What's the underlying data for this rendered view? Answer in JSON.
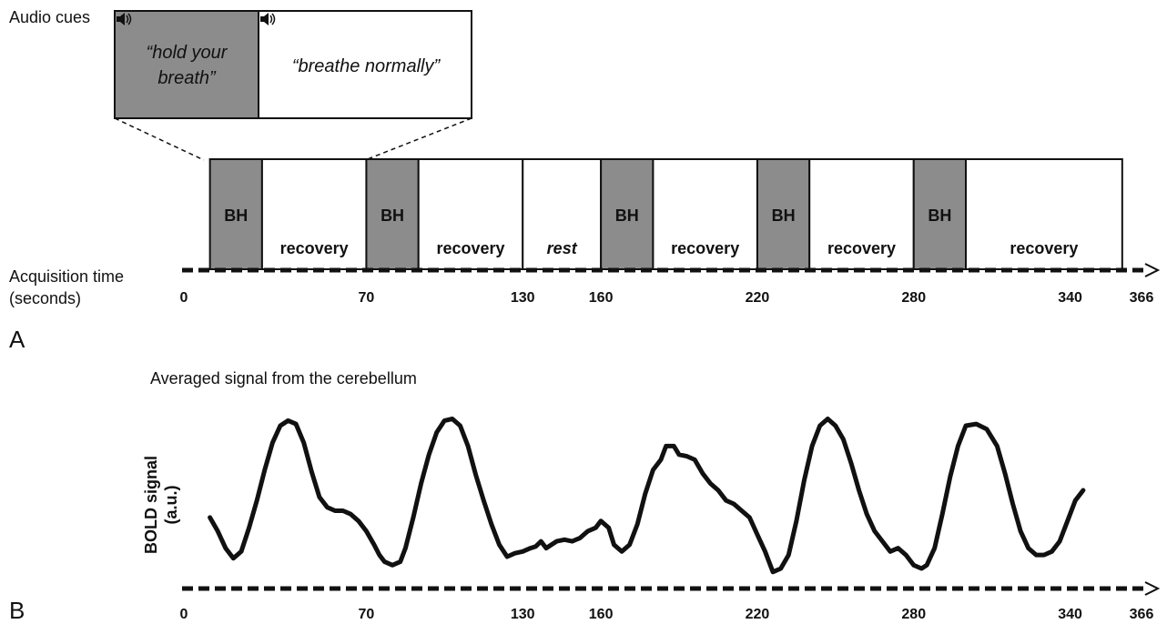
{
  "panel_a": {
    "letter": "A",
    "audio_cues_label": "Audio cues",
    "cue_hold": [
      "“hold your",
      "breath”"
    ],
    "cue_breathe": "“breathe normally”",
    "acq_label": [
      "Acquisition time",
      "(seconds)"
    ],
    "ticks": [
      0,
      70,
      130,
      160,
      220,
      280,
      340,
      366
    ],
    "axis_max": 366,
    "blocks": [
      {
        "start": 10,
        "end": 30,
        "label": "BH",
        "type": "bh"
      },
      {
        "start": 30,
        "end": 70,
        "label": "recovery",
        "type": "recovery"
      },
      {
        "start": 70,
        "end": 90,
        "label": "BH",
        "type": "bh"
      },
      {
        "start": 90,
        "end": 130,
        "label": "recovery",
        "type": "recovery"
      },
      {
        "start": 130,
        "end": 160,
        "label": "rest",
        "type": "rest"
      },
      {
        "start": 160,
        "end": 180,
        "label": "BH",
        "type": "bh"
      },
      {
        "start": 180,
        "end": 220,
        "label": "recovery",
        "type": "recovery"
      },
      {
        "start": 220,
        "end": 240,
        "label": "BH",
        "type": "bh"
      },
      {
        "start": 240,
        "end": 280,
        "label": "recovery",
        "type": "recovery"
      },
      {
        "start": 280,
        "end": 300,
        "label": "BH",
        "type": "bh"
      },
      {
        "start": 300,
        "end": 360,
        "label": "recovery",
        "type": "recovery"
      }
    ],
    "colors": {
      "bh": "#8c8c8c",
      "recovery": "#ffffff",
      "line": "#111111"
    }
  },
  "panel_b": {
    "letter": "B",
    "title": "Averaged signal from the cerebellum",
    "ylabel": [
      "BOLD signal",
      "(a.u.)"
    ]
  },
  "chart_data": {
    "type": "line",
    "title": "Averaged signal from the cerebellum",
    "xlabel": "",
    "ylabel": "BOLD signal (a.u.)",
    "xlim": [
      0,
      366
    ],
    "ylim": [
      0,
      1
    ],
    "x_ticks": [
      0,
      70,
      130,
      160,
      220,
      280,
      340,
      366
    ],
    "series": [
      {
        "values": [
          [
            10,
            0.38
          ],
          [
            13,
            0.3
          ],
          [
            16,
            0.2
          ],
          [
            19,
            0.14
          ],
          [
            22,
            0.18
          ],
          [
            25,
            0.32
          ],
          [
            28,
            0.48
          ],
          [
            31,
            0.66
          ],
          [
            34,
            0.82
          ],
          [
            37,
            0.92
          ],
          [
            40,
            0.95
          ],
          [
            43,
            0.93
          ],
          [
            46,
            0.82
          ],
          [
            49,
            0.65
          ],
          [
            52,
            0.5
          ],
          [
            55,
            0.44
          ],
          [
            58,
            0.42
          ],
          [
            61,
            0.42
          ],
          [
            64,
            0.4
          ],
          [
            67,
            0.36
          ],
          [
            70,
            0.3
          ],
          [
            73,
            0.22
          ],
          [
            75,
            0.16
          ],
          [
            77,
            0.12
          ],
          [
            80,
            0.1
          ],
          [
            83,
            0.12
          ],
          [
            85,
            0.2
          ],
          [
            88,
            0.38
          ],
          [
            91,
            0.58
          ],
          [
            94,
            0.75
          ],
          [
            97,
            0.88
          ],
          [
            100,
            0.95
          ],
          [
            103,
            0.96
          ],
          [
            106,
            0.92
          ],
          [
            109,
            0.8
          ],
          [
            112,
            0.63
          ],
          [
            115,
            0.48
          ],
          [
            118,
            0.34
          ],
          [
            121,
            0.22
          ],
          [
            124,
            0.15
          ],
          [
            127,
            0.17
          ],
          [
            130,
            0.18
          ],
          [
            133,
            0.2
          ],
          [
            135,
            0.21
          ],
          [
            137,
            0.24
          ],
          [
            139,
            0.2
          ],
          [
            141,
            0.22
          ],
          [
            143,
            0.24
          ],
          [
            146,
            0.25
          ],
          [
            149,
            0.24
          ],
          [
            152,
            0.26
          ],
          [
            155,
            0.3
          ],
          [
            158,
            0.32
          ],
          [
            160,
            0.36
          ],
          [
            163,
            0.32
          ],
          [
            165,
            0.22
          ],
          [
            168,
            0.18
          ],
          [
            171,
            0.22
          ],
          [
            174,
            0.34
          ],
          [
            177,
            0.52
          ],
          [
            180,
            0.66
          ],
          [
            183,
            0.72
          ],
          [
            185,
            0.8
          ],
          [
            188,
            0.8
          ],
          [
            190,
            0.75
          ],
          [
            193,
            0.74
          ],
          [
            196,
            0.72
          ],
          [
            199,
            0.64
          ],
          [
            202,
            0.58
          ],
          [
            205,
            0.54
          ],
          [
            208,
            0.48
          ],
          [
            211,
            0.46
          ],
          [
            214,
            0.42
          ],
          [
            217,
            0.38
          ],
          [
            220,
            0.28
          ],
          [
            223,
            0.18
          ],
          [
            226,
            0.06
          ],
          [
            229,
            0.08
          ],
          [
            232,
            0.16
          ],
          [
            235,
            0.36
          ],
          [
            238,
            0.6
          ],
          [
            241,
            0.8
          ],
          [
            244,
            0.92
          ],
          [
            247,
            0.96
          ],
          [
            250,
            0.92
          ],
          [
            253,
            0.84
          ],
          [
            256,
            0.7
          ],
          [
            259,
            0.54
          ],
          [
            262,
            0.4
          ],
          [
            265,
            0.3
          ],
          [
            268,
            0.24
          ],
          [
            271,
            0.18
          ],
          [
            274,
            0.2
          ],
          [
            277,
            0.16
          ],
          [
            280,
            0.1
          ],
          [
            283,
            0.08
          ],
          [
            285,
            0.1
          ],
          [
            288,
            0.2
          ],
          [
            291,
            0.4
          ],
          [
            294,
            0.62
          ],
          [
            297,
            0.8
          ],
          [
            300,
            0.92
          ],
          [
            304,
            0.93
          ],
          [
            308,
            0.9
          ],
          [
            312,
            0.8
          ],
          [
            315,
            0.64
          ],
          [
            318,
            0.46
          ],
          [
            321,
            0.3
          ],
          [
            324,
            0.2
          ],
          [
            327,
            0.16
          ],
          [
            330,
            0.16
          ],
          [
            333,
            0.18
          ],
          [
            336,
            0.24
          ],
          [
            339,
            0.36
          ],
          [
            342,
            0.48
          ],
          [
            345,
            0.54
          ]
        ]
      }
    ]
  }
}
